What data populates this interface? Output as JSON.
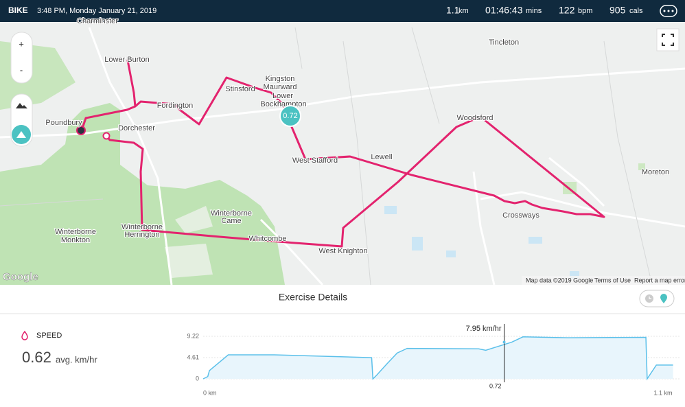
{
  "header": {
    "activity": "BIKE",
    "datetime": "3:48 PM, Monday January 21, 2019",
    "stats": [
      {
        "value": "1.1",
        "unit": "km"
      },
      {
        "value": "01:46:43",
        "unit": "mins"
      },
      {
        "value": "122",
        "unit": "bpm"
      },
      {
        "value": "905",
        "unit": "cals"
      }
    ]
  },
  "map": {
    "zoom_in": "+",
    "zoom_out": "-",
    "marker_label": "0.72",
    "logo": "Google",
    "attribution": [
      "Map data ©2019 Google",
      "Terms of Use",
      "Report a map error"
    ],
    "places": [
      "Charminster",
      "Lower Burton",
      "Stinsford",
      "Kingston",
      "Maurward",
      "Lower",
      "Bockhampton",
      "Fordington",
      "Poundbury",
      "Dorchester",
      "Tincleton",
      "Woodsford",
      "Lewell",
      "West Stafford",
      "Moreton",
      "Crossways",
      "Winterborne",
      "Came",
      "Winterborne",
      "Herrington",
      "Winterborne",
      "Monkton",
      "Whitcombe",
      "West Knighton"
    ]
  },
  "details": {
    "title": "Exercise Details",
    "metric": "SPEED",
    "average": "0.62",
    "average_unit": "avg. km/hr"
  },
  "chart_data": {
    "type": "area",
    "color": "#5bc0ea",
    "x": [
      0,
      0.011,
      0.015,
      0.06,
      0.17,
      0.403,
      0.406,
      0.415,
      0.439,
      0.464,
      0.488,
      0.659,
      0.676,
      0.738,
      0.765,
      0.872,
      1.059,
      1.062,
      1.084,
      1.124
    ],
    "values": [
      0,
      0.5,
      1.8,
      5.2,
      5.2,
      4.6,
      0,
      0.8,
      3.2,
      5.6,
      6.6,
      6.5,
      6.2,
      7.95,
      9.1,
      8.9,
      9.0,
      0,
      3.0,
      3.0
    ],
    "xlim": [
      0,
      1.1
    ],
    "xticks": [
      {
        "value": 0,
        "label": "0 km"
      },
      {
        "value": 1.1,
        "label": "1.1 km"
      }
    ],
    "ylim": [
      0,
      9.22
    ],
    "yticks": [
      0,
      4.61,
      9.22
    ],
    "cursor": {
      "x": 0.72,
      "value": 7.95,
      "value_label": "7.95 km/hr"
    }
  }
}
